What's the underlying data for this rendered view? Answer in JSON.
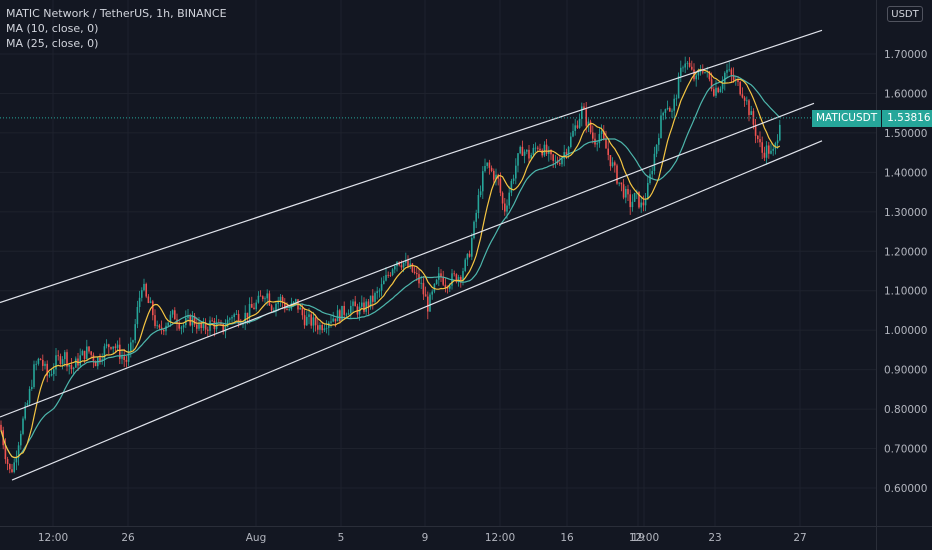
{
  "legend": {
    "title": "MATIC Network / TetherUS, 1h, BINANCE",
    "ma1": "MA (10, close, 0)",
    "ma2": "MA (25, close, 0)"
  },
  "currency_button": "USDT",
  "price_tag": {
    "symbol": "MATICUSDT",
    "value": "1.53816"
  },
  "colors": {
    "background": "#131722",
    "grid": "#1e222d",
    "up": "#26a69a",
    "down": "#ef5350",
    "ma10": "#f5c542",
    "ma25": "#4db6ac",
    "channel": "#e0e3eb"
  },
  "chart_data": {
    "type": "candlestick",
    "title": "MATIC Network / TetherUS, 1h, BINANCE",
    "ylim": [
      0.56,
      1.82
    ],
    "y_ticks": [
      "1.70000",
      "1.60000",
      "1.50000",
      "1.40000",
      "1.30000",
      "1.20000",
      "1.10000",
      "1.00000",
      "0.90000",
      "0.80000",
      "0.70000",
      "0.60000"
    ],
    "x_ticks": [
      "12:00",
      "26",
      "Aug",
      "5",
      "9",
      "12:00",
      "16",
      "19",
      "12:00",
      "23",
      "27"
    ],
    "last_price": 1.53816,
    "series": [
      {
        "name": "MA (10, close, 0)"
      },
      {
        "name": "MA (25, close, 0)"
      }
    ],
    "price_path": [
      [
        0,
        0.76
      ],
      [
        6,
        0.68
      ],
      [
        10,
        0.64
      ],
      [
        14,
        0.66
      ],
      [
        20,
        0.74
      ],
      [
        28,
        0.82
      ],
      [
        34,
        0.9
      ],
      [
        40,
        0.93
      ],
      [
        48,
        0.88
      ],
      [
        56,
        0.92
      ],
      [
        64,
        0.94
      ],
      [
        72,
        0.9
      ],
      [
        80,
        0.93
      ],
      [
        88,
        0.95
      ],
      [
        96,
        0.92
      ],
      [
        104,
        0.95
      ],
      [
        112,
        0.97
      ],
      [
        120,
        0.94
      ],
      [
        126,
        0.92
      ],
      [
        132,
        0.96
      ],
      [
        138,
        1.06
      ],
      [
        142,
        1.12
      ],
      [
        146,
        1.08
      ],
      [
        152,
        1.05
      ],
      [
        158,
        0.99
      ],
      [
        166,
        1.02
      ],
      [
        174,
        1.04
      ],
      [
        182,
        1.01
      ],
      [
        192,
        1.03
      ],
      [
        202,
        1.0
      ],
      [
        212,
        1.02
      ],
      [
        222,
        1.0
      ],
      [
        232,
        1.04
      ],
      [
        242,
        1.03
      ],
      [
        250,
        1.05
      ],
      [
        258,
        1.07
      ],
      [
        266,
        1.1
      ],
      [
        272,
        1.06
      ],
      [
        280,
        1.08
      ],
      [
        288,
        1.05
      ],
      [
        296,
        1.07
      ],
      [
        304,
        1.03
      ],
      [
        312,
        1.02
      ],
      [
        320,
        1.01
      ],
      [
        330,
        1.03
      ],
      [
        340,
        1.04
      ],
      [
        350,
        1.06
      ],
      [
        360,
        1.05
      ],
      [
        370,
        1.07
      ],
      [
        380,
        1.1
      ],
      [
        388,
        1.14
      ],
      [
        396,
        1.18
      ],
      [
        404,
        1.17
      ],
      [
        412,
        1.15
      ],
      [
        420,
        1.12
      ],
      [
        428,
        1.06
      ],
      [
        434,
        1.1
      ],
      [
        440,
        1.14
      ],
      [
        446,
        1.12
      ],
      [
        452,
        1.13
      ],
      [
        460,
        1.14
      ],
      [
        468,
        1.18
      ],
      [
        474,
        1.26
      ],
      [
        480,
        1.36
      ],
      [
        486,
        1.42
      ],
      [
        492,
        1.4
      ],
      [
        498,
        1.38
      ],
      [
        504,
        1.3
      ],
      [
        510,
        1.36
      ],
      [
        516,
        1.42
      ],
      [
        522,
        1.46
      ],
      [
        530,
        1.44
      ],
      [
        538,
        1.47
      ],
      [
        546,
        1.45
      ],
      [
        554,
        1.42
      ],
      [
        562,
        1.44
      ],
      [
        570,
        1.48
      ],
      [
        576,
        1.52
      ],
      [
        582,
        1.56
      ],
      [
        588,
        1.52
      ],
      [
        594,
        1.48
      ],
      [
        600,
        1.5
      ],
      [
        606,
        1.46
      ],
      [
        612,
        1.42
      ],
      [
        618,
        1.38
      ],
      [
        624,
        1.35
      ],
      [
        630,
        1.32
      ],
      [
        636,
        1.34
      ],
      [
        642,
        1.31
      ],
      [
        648,
        1.36
      ],
      [
        654,
        1.44
      ],
      [
        660,
        1.52
      ],
      [
        666,
        1.58
      ],
      [
        672,
        1.55
      ],
      [
        678,
        1.62
      ],
      [
        684,
        1.69
      ],
      [
        690,
        1.66
      ],
      [
        696,
        1.63
      ],
      [
        702,
        1.67
      ],
      [
        708,
        1.64
      ],
      [
        714,
        1.61
      ],
      [
        720,
        1.62
      ],
      [
        726,
        1.66
      ],
      [
        732,
        1.64
      ],
      [
        738,
        1.62
      ],
      [
        744,
        1.6
      ],
      [
        750,
        1.55
      ],
      [
        756,
        1.5
      ],
      [
        762,
        1.45
      ],
      [
        768,
        1.46
      ],
      [
        772,
        1.44
      ],
      [
        776,
        1.47
      ],
      [
        780,
        1.54
      ]
    ],
    "channel_lines": [
      {
        "from": [
          0,
          1.07
        ],
        "to": [
          822,
          1.76
        ]
      },
      {
        "from": [
          0,
          0.78
        ],
        "to": [
          814,
          1.575
        ]
      },
      {
        "from": [
          12,
          0.62
        ],
        "to": [
          822,
          1.48
        ]
      }
    ]
  }
}
